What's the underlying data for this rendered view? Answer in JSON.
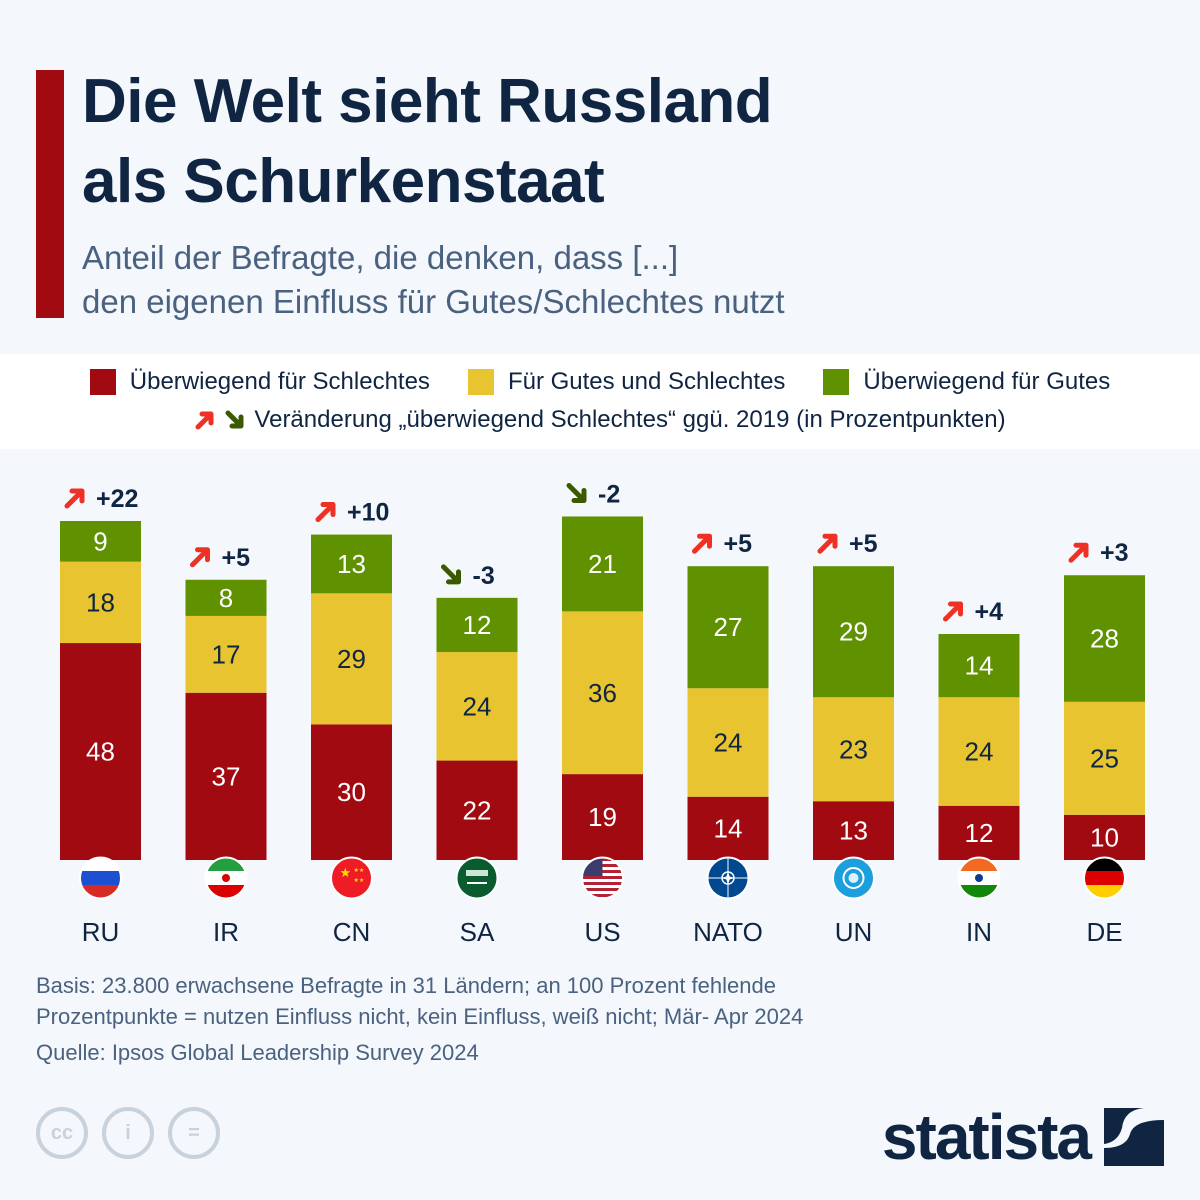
{
  "header": {
    "title_line1": "Die Welt sieht Russland",
    "title_line2": "als Schurkenstaat",
    "subtitle_line1": "Anteil der Befragte, die denken, dass [...]",
    "subtitle_line2": "den eigenen Einfluss für Gutes/Schlechtes nutzt"
  },
  "legend": {
    "items": [
      {
        "label": "Überwiegend für Schlechtes",
        "color": "#a00a10"
      },
      {
        "label": "Für Gutes und Schlechtes",
        "color": "#e8c430"
      },
      {
        "label": "Überwiegend für Gutes",
        "color": "#5f9101"
      }
    ],
    "change_label": "Veränderung „überwiegend Schlechtes“ ggü. 2019 (in Prozentpunkten)"
  },
  "colors": {
    "up_arrow": "#ee3124",
    "down_arrow": "#3b5a00",
    "text_dark": "#0f2541"
  },
  "chart_data": {
    "type": "bar",
    "stacked": true,
    "categories": [
      "RU",
      "IR",
      "CN",
      "SA",
      "US",
      "NATO",
      "UN",
      "IN",
      "DE"
    ],
    "flags": [
      "russia-flag",
      "iran-flag",
      "china-flag",
      "saudi-arabia-flag",
      "usa-flag",
      "nato-flag",
      "un-flag",
      "india-flag",
      "germany-flag"
    ],
    "series": [
      {
        "name": "Überwiegend für Schlechtes",
        "color": "#a00a10",
        "values": [
          48,
          37,
          30,
          22,
          19,
          14,
          13,
          12,
          10
        ]
      },
      {
        "name": "Für Gutes und Schlechtes",
        "color": "#e8c430",
        "values": [
          18,
          17,
          29,
          24,
          36,
          24,
          23,
          24,
          25
        ]
      },
      {
        "name": "Überwiegend für Gutes",
        "color": "#5f9101",
        "values": [
          9,
          8,
          13,
          12,
          21,
          27,
          29,
          14,
          28
        ]
      }
    ],
    "changes": [
      "+22",
      "+5",
      "+10",
      "-3",
      "-2",
      "+5",
      "+5",
      "+4",
      "+3"
    ],
    "change_direction": [
      "up",
      "up",
      "up",
      "down",
      "down",
      "up",
      "up",
      "up",
      "up"
    ],
    "ylim": [
      0,
      100
    ],
    "grid": false,
    "legend_position": "top"
  },
  "footer": {
    "note_line1": "Basis: 23.800 erwachsene Befragte in 31 Ländern; an 100 Prozent fehlende",
    "note_line2": "Prozentpunkte = nutzen Einfluss nicht, kein Einfluss, weiß nicht; Mär- Apr 2024",
    "source": "Quelle: Ipsos Global Leadership Survey 2024",
    "brand": "statista"
  }
}
